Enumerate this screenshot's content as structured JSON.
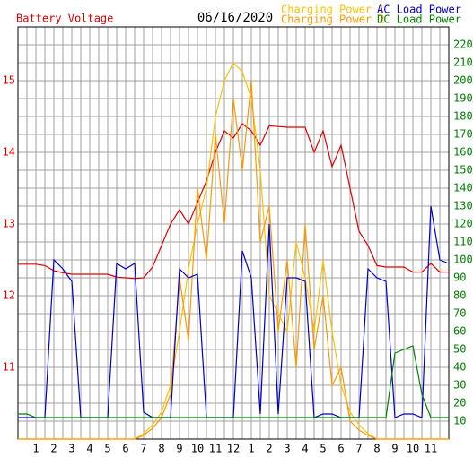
{
  "chart_data": {
    "type": "line",
    "title": "06/16/2020",
    "x": [
      0,
      0.5,
      1,
      1.5,
      2,
      2.5,
      3,
      3.5,
      4,
      4.5,
      5,
      5.5,
      6,
      6.5,
      7,
      7.5,
      8,
      8.5,
      9,
      9.5,
      10,
      10.5,
      11,
      11.5,
      12,
      12.5,
      13,
      13.5,
      14,
      14.5,
      15,
      15.5,
      16,
      16.5,
      17,
      17.5,
      18,
      18.5,
      19,
      19.5,
      20,
      20.5,
      21,
      21.5,
      22,
      22.5,
      23,
      23.5,
      24
    ],
    "xlim": [
      0,
      24
    ],
    "xticks": [
      1,
      2,
      3,
      4,
      5,
      6,
      7,
      8,
      9,
      10,
      11,
      12,
      {
        "value": 13,
        "label": "1"
      },
      {
        "value": 14,
        "label": "2"
      },
      {
        "value": 15,
        "label": "3"
      },
      {
        "value": 16,
        "label": "4"
      },
      {
        "value": 17,
        "label": "5"
      },
      {
        "value": 18,
        "label": "6"
      },
      {
        "value": 19,
        "label": "7"
      },
      {
        "value": 20,
        "label": "8"
      },
      {
        "value": 21,
        "label": "9"
      },
      {
        "value": 22,
        "label": "10"
      },
      {
        "value": 23,
        "label": "11"
      }
    ],
    "ylim": [
      10,
      15.75
    ],
    "yticks": [
      11,
      12,
      13,
      14,
      15
    ],
    "y2lim": [
      0,
      230
    ],
    "y2ticks": [
      10,
      20,
      30,
      40,
      50,
      60,
      70,
      80,
      90,
      100,
      110,
      120,
      130,
      140,
      150,
      160,
      170,
      180,
      190,
      200,
      210,
      220
    ],
    "grid": true,
    "series": [
      {
        "name": "Battery Voltage",
        "color": "#e00000",
        "axis": "y",
        "values": [
          12.44,
          12.44,
          12.44,
          12.42,
          12.35,
          12.32,
          12.3,
          12.3,
          12.3,
          12.3,
          12.3,
          12.26,
          12.25,
          12.24,
          12.25,
          12.4,
          12.7,
          13.0,
          13.2,
          13.0,
          13.3,
          13.6,
          14.0,
          14.3,
          14.2,
          14.4,
          14.3,
          14.1,
          14.37,
          14.36,
          14.35,
          14.35,
          14.35,
          14.0,
          14.3,
          13.8,
          14.1,
          13.5,
          12.9,
          12.7,
          12.42,
          12.4,
          12.4,
          12.4,
          12.33,
          12.33,
          12.45,
          12.33,
          12.33
        ]
      },
      {
        "name": "Charging Power 1",
        "color": "#ffc000",
        "axis": "y2",
        "values": [
          0,
          0,
          0,
          0,
          0,
          0,
          0,
          0,
          0,
          0,
          0,
          0,
          0,
          0,
          3,
          8,
          15,
          30,
          60,
          95,
          120,
          140,
          180,
          200,
          210,
          205,
          190,
          150,
          80,
          70,
          60,
          110,
          90,
          60,
          100,
          60,
          30,
          15,
          8,
          3,
          0,
          0,
          0,
          0,
          0,
          0,
          0,
          0,
          0
        ]
      },
      {
        "name": "Charging Power 2",
        "color": "#ff9900",
        "axis": "y2",
        "values": [
          0,
          0,
          0,
          0,
          0,
          0,
          0,
          0,
          0,
          0,
          0,
          0,
          0,
          0,
          2,
          6,
          12,
          25,
          90,
          55,
          140,
          100,
          170,
          120,
          190,
          150,
          200,
          110,
          130,
          60,
          100,
          40,
          120,
          50,
          80,
          30,
          40,
          10,
          5,
          2,
          0,
          0,
          0,
          0,
          0,
          0,
          0,
          0,
          0
        ]
      },
      {
        "name": "AC Load Power",
        "color": "#0000cc",
        "axis": "y2",
        "values": [
          12,
          12,
          12,
          12,
          100,
          95,
          88,
          12,
          12,
          12,
          12,
          98,
          95,
          98,
          15,
          12,
          12,
          12,
          95,
          90,
          92,
          12,
          12,
          12,
          12,
          105,
          90,
          14,
          120,
          14,
          90,
          90,
          88,
          12,
          14,
          14,
          12,
          12,
          12,
          95,
          90,
          88,
          12,
          14,
          14,
          12,
          130,
          100,
          98
        ]
      },
      {
        "name": "DC Load Power",
        "color": "#008000",
        "axis": "y2",
        "values": [
          14,
          14,
          12,
          12,
          12,
          12,
          12,
          12,
          12,
          12,
          12,
          12,
          12,
          12,
          12,
          12,
          12,
          12,
          12,
          12,
          12,
          12,
          12,
          12,
          12,
          12,
          12,
          12,
          12,
          12,
          12,
          12,
          12,
          12,
          12,
          12,
          12,
          12,
          12,
          12,
          12,
          12,
          48,
          50,
          52,
          25,
          12,
          12,
          12
        ]
      }
    ]
  }
}
